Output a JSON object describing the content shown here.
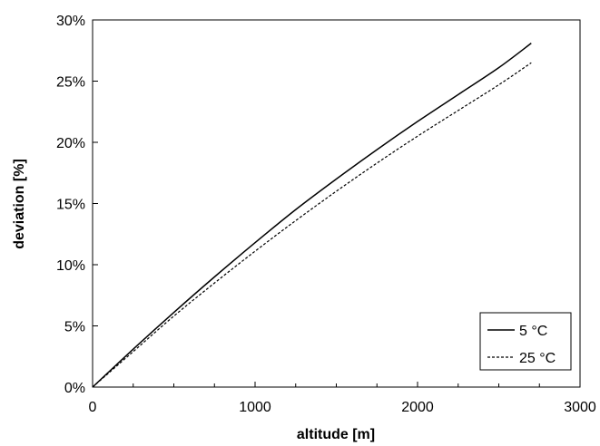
{
  "chart_data": {
    "type": "line",
    "title": "",
    "xlabel": "altitude [m]",
    "ylabel": "deviation [%]",
    "xlim": [
      0,
      3000
    ],
    "ylim": [
      0,
      30
    ],
    "x_ticks": [
      "0",
      "1000",
      "2000",
      "3000"
    ],
    "y_ticks": [
      "0%",
      "5%",
      "10%",
      "15%",
      "20%",
      "25%",
      "30%"
    ],
    "grid": false,
    "legend_position": "bottom-right",
    "series": [
      {
        "name": "5 °C",
        "style": "solid",
        "color": "#000000",
        "x": [
          0,
          250,
          500,
          750,
          1000,
          1250,
          1500,
          1750,
          2000,
          2250,
          2500,
          2700
        ],
        "y": [
          0,
          3.1,
          6.1,
          9.0,
          11.8,
          14.5,
          17.0,
          19.4,
          21.7,
          23.9,
          26.1,
          28.1
        ]
      },
      {
        "name": "25 °C",
        "style": "dashed",
        "color": "#000000",
        "x": [
          0,
          250,
          500,
          750,
          1000,
          1250,
          1500,
          1750,
          2000,
          2250,
          2500,
          2700
        ],
        "y": [
          0,
          2.9,
          5.8,
          8.5,
          11.1,
          13.6,
          16.0,
          18.3,
          20.5,
          22.6,
          24.7,
          26.5
        ]
      }
    ]
  }
}
